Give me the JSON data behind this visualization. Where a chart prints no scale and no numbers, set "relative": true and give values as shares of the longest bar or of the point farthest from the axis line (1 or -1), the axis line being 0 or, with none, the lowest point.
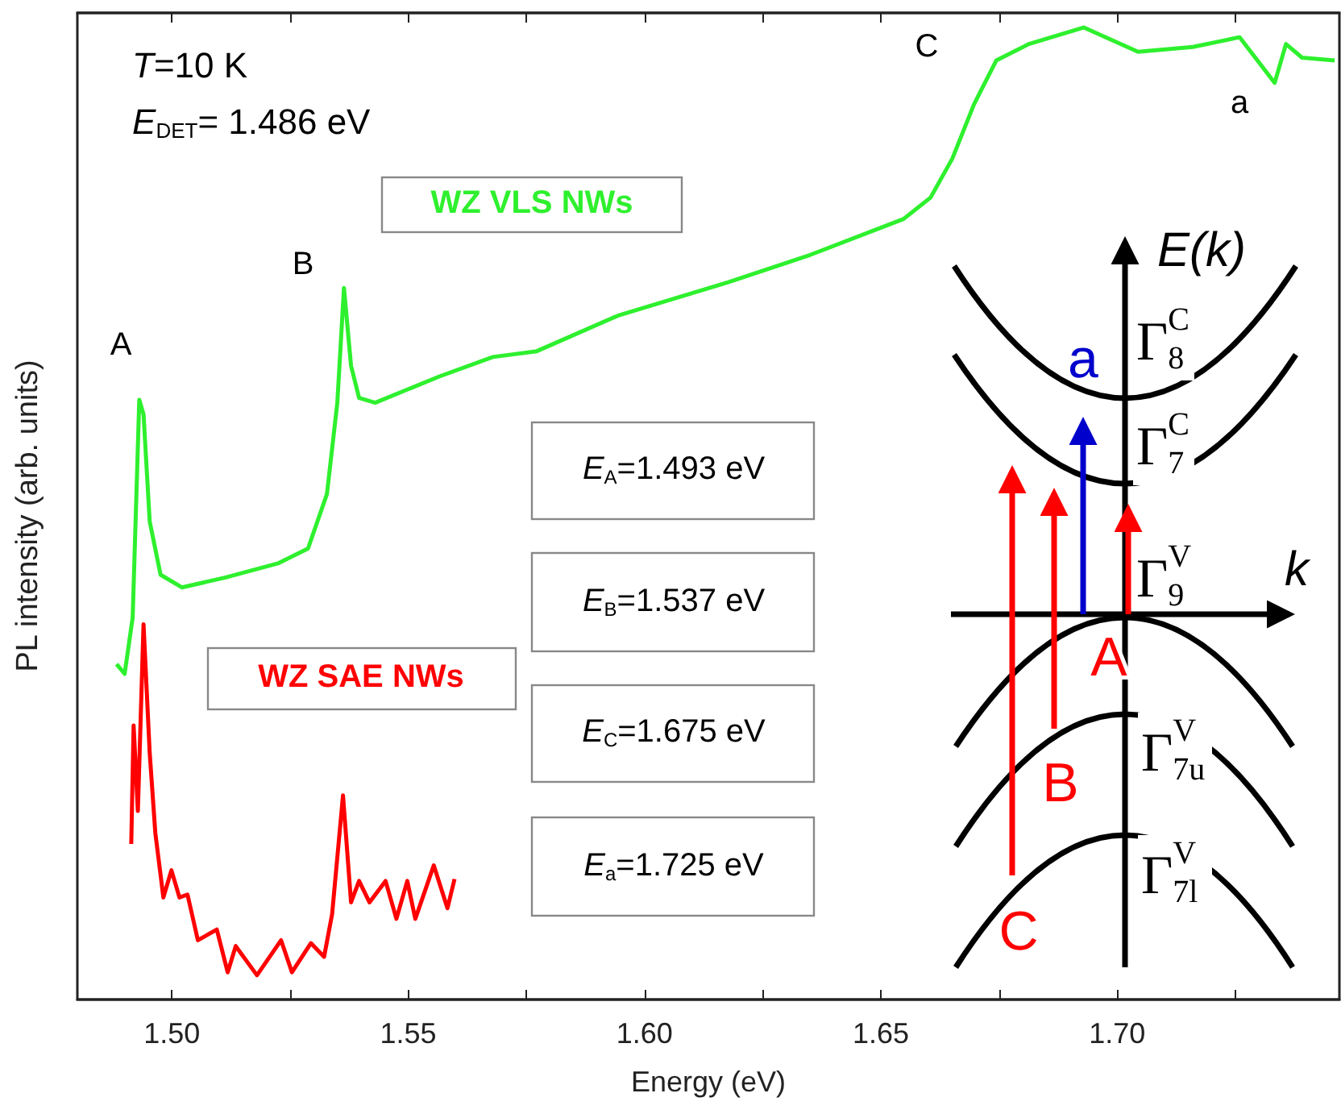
{
  "chart_data": {
    "type": "line",
    "xlabel": "Energy (eV)",
    "ylabel": "PL intensity (arb. units)",
    "relative": true,
    "xlim": [
      1.48,
      1.747
    ],
    "xticks": [
      {
        "value": 1.5,
        "label": "1.50"
      },
      {
        "value": 1.525,
        "label": null
      },
      {
        "value": 1.55,
        "label": "1.55"
      },
      {
        "value": 1.575,
        "label": null
      },
      {
        "value": 1.6,
        "label": "1.60"
      },
      {
        "value": 1.625,
        "label": null
      },
      {
        "value": 1.65,
        "label": "1.65"
      },
      {
        "value": 1.675,
        "label": null
      },
      {
        "value": 1.7,
        "label": "1.70"
      },
      {
        "value": 1.725,
        "label": null
      }
    ],
    "grid": false,
    "legend": false,
    "marker": "none",
    "line_style": "solid",
    "series": [
      {
        "name": "WZ VLS NWs",
        "color": "#2ef02e",
        "x": [
          1.4883,
          1.49,
          1.4917,
          1.4931,
          1.494,
          1.4953,
          1.4976,
          1.5021,
          1.5112,
          1.5226,
          1.5288,
          1.5328,
          1.535,
          1.5364,
          1.5379,
          1.5396,
          1.543,
          1.5566,
          1.5679,
          1.5772,
          1.5946,
          1.6177,
          1.635,
          1.6548,
          1.6605,
          1.6651,
          1.6697,
          1.6744,
          1.6813,
          1.6929,
          1.7044,
          1.716,
          1.7259,
          1.7333,
          1.7357,
          1.7391,
          1.746
        ],
        "values": [
          0.345,
          0.335,
          0.393,
          0.617,
          0.602,
          0.492,
          0.437,
          0.424,
          0.434,
          0.449,
          0.464,
          0.52,
          0.614,
          0.732,
          0.652,
          0.619,
          0.614,
          0.641,
          0.661,
          0.667,
          0.704,
          0.738,
          0.766,
          0.803,
          0.825,
          0.865,
          0.921,
          0.966,
          0.983,
          1.0,
          0.975,
          0.98,
          0.99,
          0.943,
          0.983,
          0.969,
          0.966
        ]
      },
      {
        "name": "WZ SAE NWs",
        "color": "#ff0000",
        "x": [
          1.4914,
          1.4919,
          1.4928,
          1.494,
          1.4953,
          1.4965,
          1.4982,
          1.4999,
          1.5016,
          1.5033,
          1.5055,
          1.5095,
          1.5118,
          1.5135,
          1.518,
          1.5231,
          1.5254,
          1.5294,
          1.5322,
          1.5339,
          1.5362,
          1.5379,
          1.5396,
          1.5418,
          1.5452,
          1.5475,
          1.5498,
          1.5515,
          1.5554,
          1.5583,
          1.5598
        ],
        "values": [
          0.16,
          0.282,
          0.194,
          0.386,
          0.254,
          0.171,
          0.105,
          0.133,
          0.105,
          0.108,
          0.061,
          0.072,
          0.028,
          0.055,
          0.025,
          0.061,
          0.028,
          0.058,
          0.044,
          0.088,
          0.21,
          0.1,
          0.122,
          0.1,
          0.122,
          0.083,
          0.122,
          0.083,
          0.138,
          0.094,
          0.124
        ]
      }
    ],
    "annotations": [
      "T=10 K",
      "E$_{DET}$= 1.486 eV",
      "E$_{A}$=1.493 eV",
      "E$_{B}$=1.537 eV",
      "E$_{C}$=1.675 eV",
      "E$_{a}$=1.725 eV",
      "E(k)",
      "k",
      "Γ$^{C}$$_{8}$",
      "Γ$^{C}$$_{7}$",
      "Γ$^{V}$$_{9}$",
      "Γ$^{V}$$_{7u}$",
      "Γ$^{V}$$_{7l}$",
      "a",
      "A",
      "B",
      "C",
      "A",
      "B",
      "C",
      "a"
    ]
  }
}
